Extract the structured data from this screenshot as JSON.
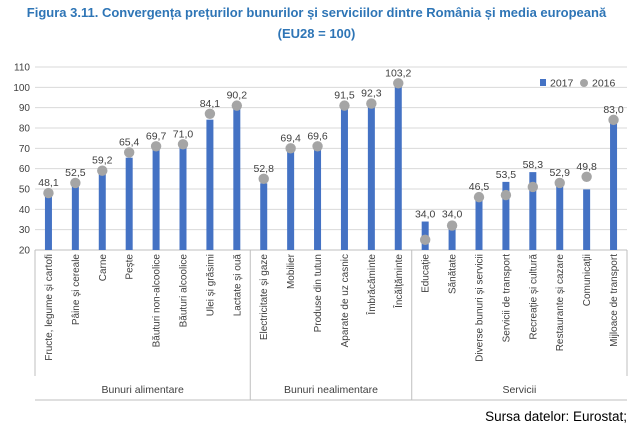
{
  "title_line1": "Figura 3.11. Convergența prețurilor bunurilor și serviciilor dintre România și media europeană",
  "title_line2": "(EU28 = 100)",
  "source": "Sursa datelor: Eurostat;",
  "chart_data": {
    "type": "bar",
    "ylim": [
      20,
      110
    ],
    "yticks": [
      20,
      30,
      40,
      50,
      60,
      70,
      80,
      90,
      100,
      110
    ],
    "grid": true,
    "legend_position": "top-right",
    "categories": [
      "Fructe, legume și cartofi",
      "Pâine și cereale",
      "Carne",
      "Pește",
      "Băuturi non-alcoolice",
      "Băuturi alcoolice",
      "Ulei și grăsimi",
      "Lactate și ouă",
      "Electricitate și gaze",
      "Mobilier",
      "Produse din tutun",
      "Aparate de uz casnic",
      "Îmbrăcăminte",
      "Încălțăminte",
      "Educație",
      "Sănătate",
      "Diverse bunuri și servicii",
      "Servicii de transport",
      "Recreație și cultură",
      "Restaurante și cazare",
      "Comunicații",
      "Mijloace de transport"
    ],
    "groups": [
      {
        "name": "Bunuri alimentare",
        "count": 8
      },
      {
        "name": "Bunuri nealimentare",
        "count": 6
      },
      {
        "name": "Servicii",
        "count": 8
      }
    ],
    "series": [
      {
        "name": "2017",
        "type": "bar",
        "color": "#4472C4",
        "values": [
          48.1,
          52.5,
          59.2,
          65.4,
          69.7,
          71.0,
          84.1,
          90.2,
          52.8,
          69.4,
          69.6,
          91.5,
          92.3,
          103.2,
          34.0,
          34.0,
          46.5,
          53.5,
          58.3,
          52.9,
          49.8,
          83.0
        ],
        "labels": [
          "48,1",
          "52,5",
          "59,2",
          "65,4",
          "69,7",
          "71,0",
          "84,1",
          "90,2",
          "52,8",
          "69,4",
          "69,6",
          "91,5",
          "92,3",
          "103,2",
          "34,0",
          "34,0",
          "46,5",
          "53,5",
          "58,3",
          "52,9",
          "49,8",
          "83,0"
        ]
      },
      {
        "name": "2016",
        "type": "scatter",
        "color": "#A5A5A5",
        "values": [
          48,
          53,
          59,
          68,
          71,
          72,
          87,
          91,
          55,
          70,
          71,
          91,
          92,
          102,
          25,
          32,
          46,
          47,
          51,
          53,
          56,
          84
        ]
      }
    ]
  }
}
